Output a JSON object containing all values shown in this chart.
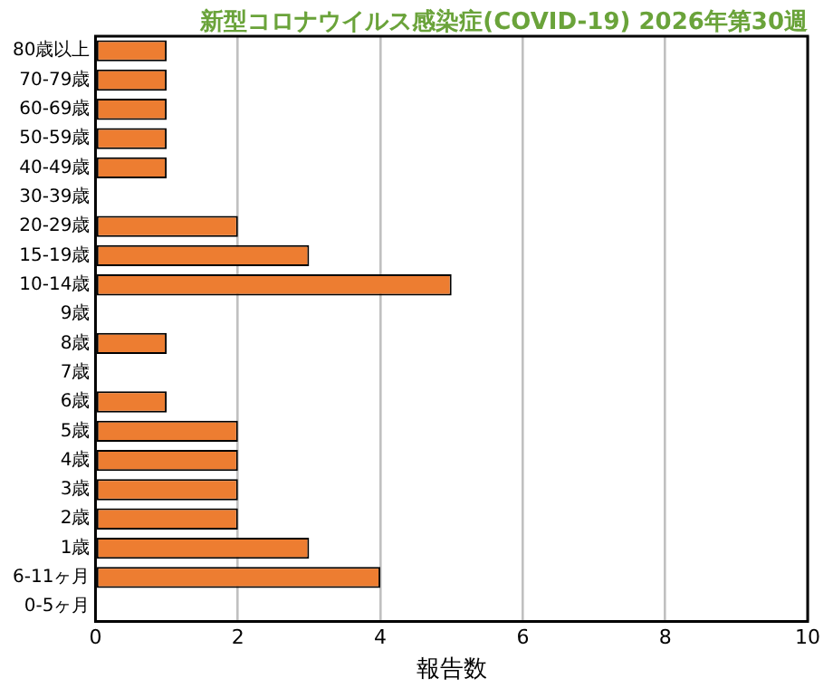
{
  "chart_data": {
    "type": "bar",
    "orientation": "horizontal",
    "title": "新型コロナウイルス感染症(COVID-19) 2026年第30週",
    "xlabel": "報告数",
    "categories": [
      "80歳以上",
      "70-79歳",
      "60-69歳",
      "50-59歳",
      "40-49歳",
      "30-39歳",
      "20-29歳",
      "15-19歳",
      "10-14歳",
      "9歳",
      "8歳",
      "7歳",
      "6歳",
      "5歳",
      "4歳",
      "3歳",
      "2歳",
      "1歳",
      "6-11ヶ月",
      "0-5ヶ月"
    ],
    "values": [
      1,
      1,
      1,
      1,
      1,
      0,
      2,
      3,
      5,
      0,
      1,
      0,
      1,
      2,
      2,
      2,
      2,
      3,
      4,
      0
    ],
    "color": "#ed7d31",
    "xlim": [
      0,
      10
    ],
    "xticks": [
      0,
      2,
      4,
      6,
      8,
      10
    ],
    "grid": "x",
    "legend": false
  }
}
